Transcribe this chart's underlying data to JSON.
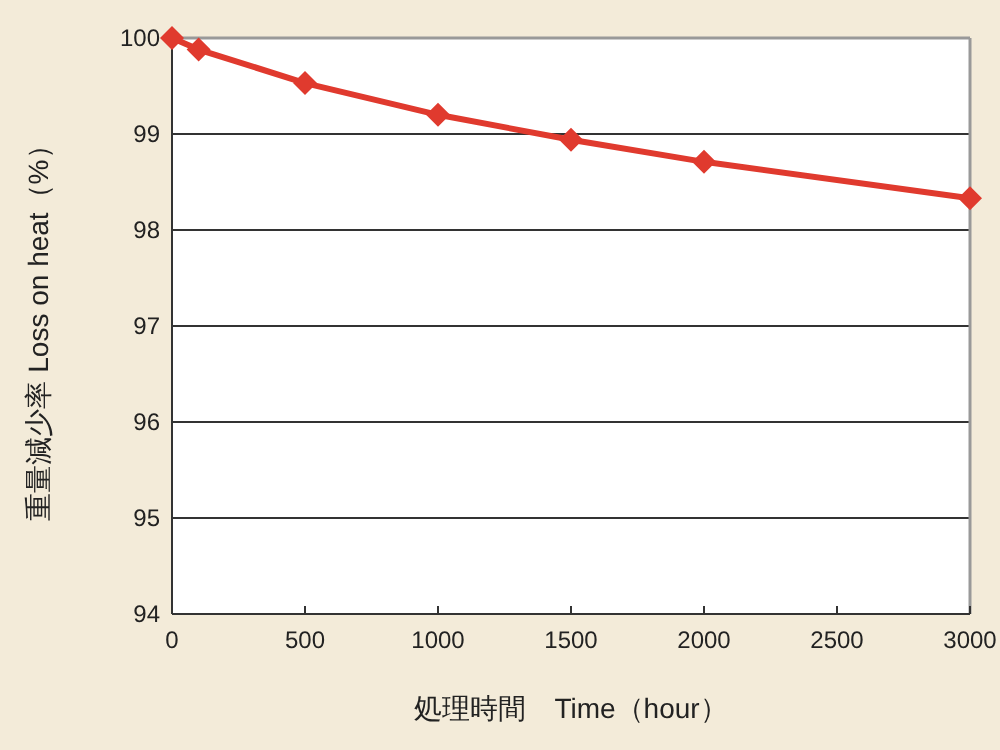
{
  "chart_data": {
    "type": "line",
    "xlabel": "処理時間　Time（hour）",
    "ylabel": "重量減少率 Loss on heat（%）",
    "x": [
      0,
      100,
      500,
      1000,
      1500,
      2000,
      3000
    ],
    "series": [
      {
        "color": "#e03a2e",
        "values": [
          100,
          99.88,
          99.53,
          99.2,
          98.94,
          98.71,
          98.33
        ]
      }
    ],
    "xlim": [
      0,
      3000
    ],
    "xticks": [
      0,
      500,
      1000,
      1500,
      2000,
      2500,
      3000
    ],
    "ylim": [
      94,
      100
    ],
    "yticks": [
      94,
      95,
      96,
      97,
      98,
      99,
      100
    ],
    "grid": "y",
    "marker": "diamond",
    "line_style": "solid"
  }
}
